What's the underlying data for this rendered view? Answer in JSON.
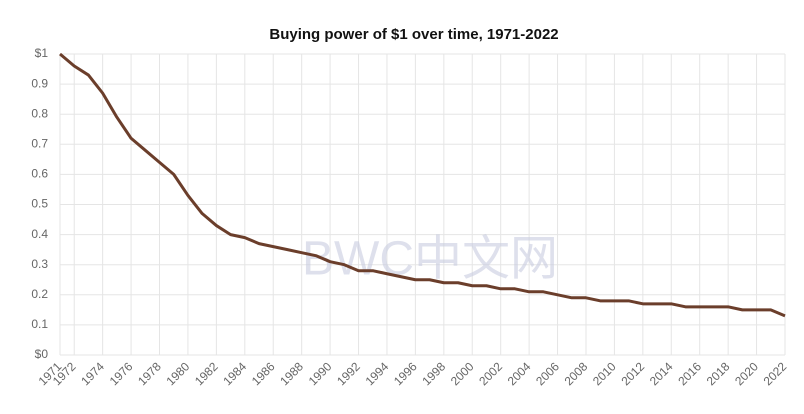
{
  "chart_data": {
    "type": "line",
    "title": "Buying power of $1 over time, 1971-2022",
    "watermark": "BWC中文网",
    "x": [
      1971,
      1972,
      1973,
      1974,
      1975,
      1976,
      1977,
      1978,
      1979,
      1980,
      1981,
      1982,
      1983,
      1984,
      1985,
      1986,
      1987,
      1988,
      1989,
      1990,
      1991,
      1992,
      1993,
      1994,
      1995,
      1996,
      1997,
      1998,
      1999,
      2000,
      2001,
      2002,
      2003,
      2004,
      2005,
      2006,
      2007,
      2008,
      2009,
      2010,
      2011,
      2012,
      2013,
      2014,
      2015,
      2016,
      2017,
      2018,
      2019,
      2020,
      2021,
      2022
    ],
    "series": [
      {
        "color": "#6b3e2b",
        "values": [
          1.0,
          0.96,
          0.93,
          0.87,
          0.79,
          0.72,
          0.68,
          0.64,
          0.6,
          0.53,
          0.47,
          0.43,
          0.4,
          0.39,
          0.37,
          0.36,
          0.35,
          0.34,
          0.33,
          0.31,
          0.3,
          0.28,
          0.28,
          0.27,
          0.26,
          0.25,
          0.25,
          0.24,
          0.24,
          0.23,
          0.23,
          0.22,
          0.22,
          0.21,
          0.21,
          0.2,
          0.19,
          0.19,
          0.18,
          0.18,
          0.18,
          0.17,
          0.17,
          0.17,
          0.16,
          0.16,
          0.16,
          0.16,
          0.15,
          0.15,
          0.15,
          0.13
        ]
      }
    ],
    "xlim": [
      1971,
      2022
    ],
    "xticks": [
      1971,
      1972,
      1974,
      1976,
      1978,
      1980,
      1982,
      1984,
      1986,
      1988,
      1990,
      1992,
      1994,
      1996,
      1998,
      2000,
      2002,
      2004,
      2006,
      2008,
      2010,
      2012,
      2014,
      2016,
      2018,
      2020,
      2022
    ],
    "ylim": [
      0,
      1
    ],
    "yticks": [
      {
        "value": 0,
        "label": "$0"
      },
      0.1,
      0.2,
      0.3,
      0.4,
      0.5,
      0.6,
      0.7,
      0.8,
      0.9,
      {
        "value": 1,
        "label": "$1"
      }
    ],
    "grid": true
  }
}
